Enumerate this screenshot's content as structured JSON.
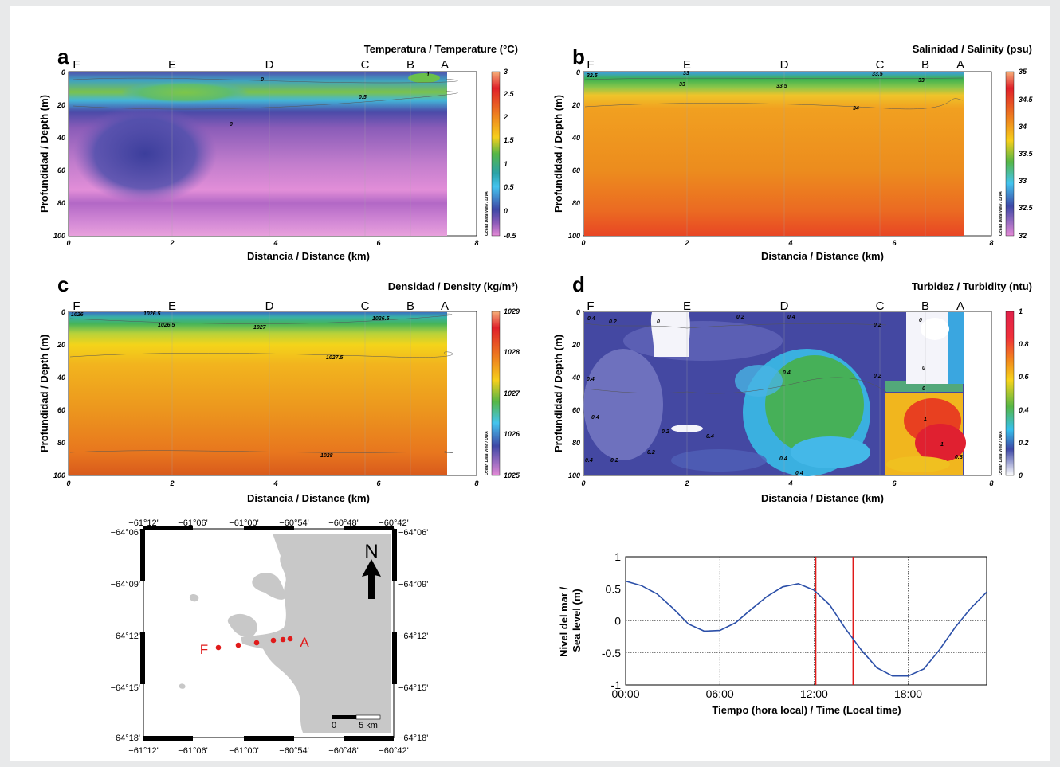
{
  "panels": [
    {
      "id": "a",
      "letter": "a",
      "title": "Temperatura / Temperature (°C)",
      "colorbar": [
        "3",
        "2.5",
        "2",
        "1.5",
        "1",
        "0.5",
        "0",
        "-0.5"
      ],
      "contours": [
        "0",
        "0.5",
        "0",
        "1"
      ]
    },
    {
      "id": "b",
      "letter": "b",
      "title": "Salinidad / Salinity (psu)",
      "colorbar": [
        "35",
        "34.5",
        "34",
        "33.5",
        "33",
        "32.5",
        "32"
      ],
      "contours": [
        "32.5",
        "33",
        "33",
        "33.5",
        "33.5",
        "33",
        "34"
      ]
    },
    {
      "id": "c",
      "letter": "c",
      "title": "Densidad / Density (kg/m³)",
      "colorbar": [
        "1029",
        "1028",
        "1027",
        "1026",
        "1025"
      ],
      "contours": [
        "1026",
        "1026.5",
        "1026.5",
        "1027",
        "1026.5",
        "1027.5",
        "1028"
      ]
    },
    {
      "id": "d",
      "letter": "d",
      "title": "Turbidez / Turbidity (ntu)",
      "colorbar": [
        "1",
        "0.8",
        "0.6",
        "0.4",
        "0.2",
        "0"
      ],
      "contours": [
        "0.4",
        "0.2",
        "0",
        "0.2",
        "0.4",
        "0.2",
        "0",
        "0",
        "0",
        "0.4",
        "0.2",
        "0.4",
        "0.4",
        "0.2",
        "0.4",
        "0.2",
        "0.2",
        "0.4",
        "0.4",
        "1",
        "1",
        "0.8",
        "0.4"
      ]
    }
  ],
  "common": {
    "stations": [
      "F",
      "E",
      "D",
      "C",
      "B",
      "A"
    ],
    "ylabel": "Profundidad / Depth (m)",
    "xlabel": "Distancia / Distance (km)",
    "yticks": [
      "0",
      "20",
      "40",
      "60",
      "80",
      "100"
    ],
    "xticks": [
      "0",
      "2",
      "4",
      "6",
      "8"
    ],
    "odv": "Ocean Data View / DIVA"
  },
  "map": {
    "top_lon": [
      "−61°12'",
      "−61°06'",
      "−61°00'",
      "−60°54'",
      "−60°48'",
      "−60°42'"
    ],
    "bottom_lon": [
      "−61°12'",
      "−61°06'",
      "−61°00'",
      "−60°54'",
      "−60°48'",
      "−60°42'"
    ],
    "left_lat": [
      "−64°06'",
      "−64°09'",
      "−64°12'",
      "−64°15'",
      "−64°18'"
    ],
    "right_lat": [
      "−64°06'",
      "−64°09'",
      "−64°12'",
      "−64°15'",
      "−64°18'"
    ],
    "north": "N",
    "station_F": "F",
    "station_A": "A",
    "scale_0": "0",
    "scale_5": "5 km",
    "colors": {
      "land": "#c8c8c8",
      "stations": "#e01a1a"
    }
  },
  "chart_data": {
    "type": "line",
    "title": "",
    "xlabel": "Tiempo (hora local) / Time (Local time)",
    "ylabel": "Nivel del mar / Sea level (m)",
    "ylabel_lines": [
      "Nivel del mar /",
      "Sea level (m)"
    ],
    "xticks": [
      "00:00",
      "06:00",
      "12:00",
      "18:00"
    ],
    "yticks": [
      "1",
      "0.5",
      "0",
      "-0.5",
      "-1"
    ],
    "xlim": [
      0,
      23
    ],
    "ylim": [
      -1,
      1
    ],
    "grid": true,
    "series": [
      {
        "color": "#2b4fa8",
        "x": [
          0,
          1,
          2,
          3,
          4,
          5,
          6,
          7,
          8,
          9,
          10,
          11,
          12,
          13,
          14,
          15,
          16,
          17,
          18,
          19,
          20,
          21,
          22,
          23
        ],
        "values": [
          0.62,
          0.55,
          0.42,
          0.2,
          -0.05,
          -0.16,
          -0.15,
          -0.03,
          0.18,
          0.38,
          0.53,
          0.58,
          0.48,
          0.25,
          -0.12,
          -0.45,
          -0.73,
          -0.86,
          -0.86,
          -0.75,
          -0.45,
          -0.1,
          0.2,
          0.45
        ]
      }
    ],
    "vlines": [
      {
        "x": 12.1,
        "color": "#e01a1a"
      },
      {
        "x": 14.5,
        "color": "#e01a1a"
      }
    ]
  }
}
